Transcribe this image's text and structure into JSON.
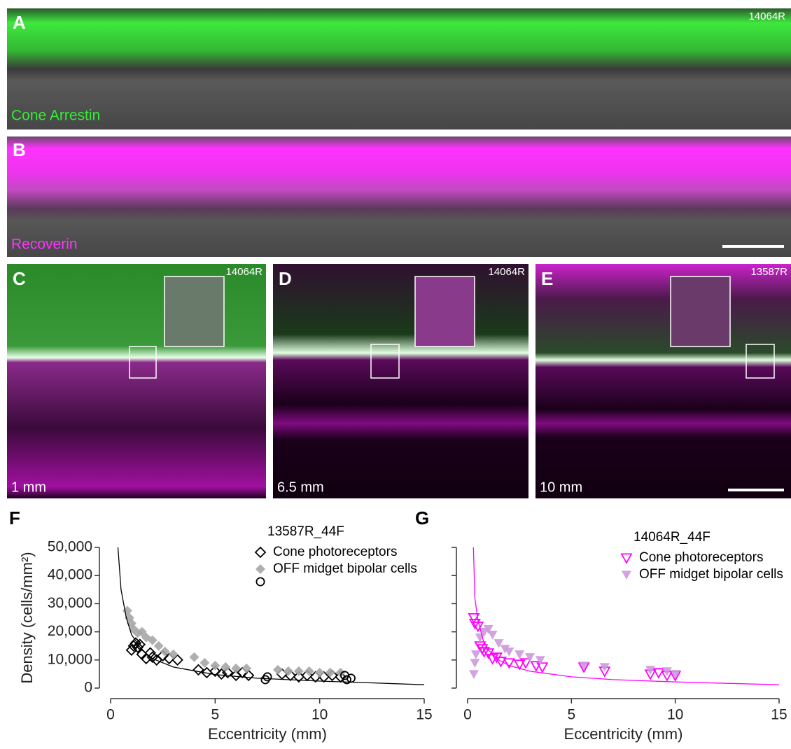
{
  "images": [
    {
      "label": "A",
      "sample": "14064R",
      "stain": "Cone Arrestin"
    },
    {
      "label": "B",
      "stain": "Recoverin"
    },
    {
      "label": "C",
      "sample": "14064R",
      "eccentricity": "1 mm"
    },
    {
      "label": "D",
      "sample": "14064R",
      "eccentricity": "6.5 mm"
    },
    {
      "label": "E",
      "sample": "13587R",
      "eccentricity": "10 mm"
    }
  ],
  "chart_data": [
    {
      "type": "scatter",
      "label": "F",
      "legend_title": "13587R_44F",
      "x_label": "Eccentricity (mm)",
      "y_label": "Density (cells/mm²)",
      "xlim": [
        0,
        15
      ],
      "xticks": [
        0,
        5,
        10,
        15
      ],
      "ylim": [
        0,
        50000
      ],
      "yticks": [
        0,
        {
          "value": 10000,
          "label": "10,000"
        },
        {
          "value": 20000,
          "label": "20,000"
        },
        {
          "value": 30000,
          "label": "30,000"
        },
        {
          "value": 40000,
          "label": "40,000"
        },
        {
          "value": 50000,
          "label": "50,000"
        }
      ],
      "series": [
        {
          "name": "Cone photoreceptors",
          "color": "#000000",
          "marker": "diamond-open",
          "x": [
            1,
            1.1,
            1.2,
            1.3,
            1.4,
            1.5,
            1.7,
            1.9,
            2,
            2.2,
            2.5,
            2.8,
            3.2,
            4.2,
            4.6,
            5,
            5.3,
            5.6,
            6,
            6.3,
            6.6,
            8.2,
            8.6,
            9,
            9.4,
            9.8,
            10.2,
            10.6,
            11
          ],
          "values": [
            13500,
            15000,
            16000,
            14500,
            15500,
            12000,
            10500,
            12500,
            11000,
            10000,
            11500,
            10500,
            10000,
            6500,
            5500,
            6000,
            5000,
            5500,
            4500,
            5500,
            4500,
            5000,
            4500,
            4000,
            4500,
            4000,
            4000,
            4500,
            4000
          ]
        },
        {
          "name": "OFF midget bipolar cells",
          "color": "#a6a6a6",
          "marker": "diamond-filled",
          "x": [
            0.8,
            0.9,
            1,
            1.1,
            1.3,
            1.5,
            1.7,
            2,
            2.3,
            2.6,
            3,
            4,
            4.5,
            5,
            5.5,
            6,
            6.5,
            8,
            8.5,
            9,
            9.5,
            10,
            10.5,
            11
          ],
          "values": [
            27500,
            25000,
            23000,
            21000,
            19500,
            20000,
            18000,
            17000,
            15000,
            13000,
            12000,
            11000,
            9000,
            8000,
            7500,
            7000,
            7000,
            6500,
            6000,
            6000,
            6000,
            5500,
            5500,
            5500
          ]
        },
        {
          "color": "#000000",
          "marker": "circle-open",
          "x": [
            7.4,
            7.5,
            11.2,
            11.3,
            11.5
          ],
          "values": [
            3000,
            4000,
            4500,
            3000,
            3500
          ]
        },
        {
          "type": "line",
          "color": "#000000",
          "x": [
            0.35,
            0.5,
            0.75,
            1,
            1.5,
            2,
            3,
            5,
            7,
            10,
            12,
            15
          ],
          "values": [
            50000,
            35000,
            25000,
            19000,
            13500,
            10500,
            7500,
            4800,
            3500,
            2500,
            2000,
            1200
          ]
        }
      ]
    },
    {
      "type": "scatter",
      "label": "G",
      "legend_title": "14064R_44F",
      "x_label": "Eccentricity (mm)",
      "xlim": [
        0,
        15
      ],
      "xticks": [
        0,
        5,
        10,
        15
      ],
      "ylim": [
        0,
        50000
      ],
      "yticks": [
        0,
        10000,
        20000,
        30000,
        40000,
        50000
      ],
      "ytick_labels": false,
      "series": [
        {
          "name": "Cone photoreceptors",
          "color": "#ff00ff",
          "marker": "tri-open",
          "x": [
            0.3,
            0.35,
            0.5,
            0.6,
            0.7,
            0.8,
            1,
            1.2,
            1.4,
            1.6,
            2,
            2.5,
            2.8,
            3.3,
            3.6,
            5.6,
            6.6,
            8.8,
            9.2,
            9.6,
            10
          ],
          "values": [
            25000,
            23000,
            22000,
            15000,
            14000,
            13000,
            12500,
            10500,
            11000,
            9500,
            9000,
            8500,
            9000,
            8000,
            7500,
            7500,
            6000,
            5000,
            5500,
            4500,
            4500
          ]
        },
        {
          "name": "OFF midget bipolar cells",
          "color": "#cc99dd",
          "marker": "tri-filled",
          "x": [
            0.3,
            0.35,
            0.4,
            0.6,
            0.8,
            1,
            1.2,
            1.5,
            1.8,
            2,
            2.5,
            3,
            3.5,
            5.6,
            6.6,
            8.8,
            9.6,
            10
          ],
          "values": [
            5000,
            9000,
            12000,
            18000,
            20000,
            21000,
            19000,
            16000,
            14000,
            13000,
            12000,
            11000,
            10000,
            8000,
            7500,
            6500,
            6000,
            5000
          ]
        },
        {
          "type": "line",
          "color": "#ff00ff",
          "x": [
            0.28,
            0.35,
            0.5,
            0.75,
            1,
            1.5,
            2,
            3,
            5,
            7,
            10,
            15
          ],
          "values": [
            50000,
            32000,
            24000,
            17000,
            13500,
            10000,
            8000,
            6000,
            4000,
            3000,
            2200,
            1200
          ]
        }
      ]
    }
  ]
}
